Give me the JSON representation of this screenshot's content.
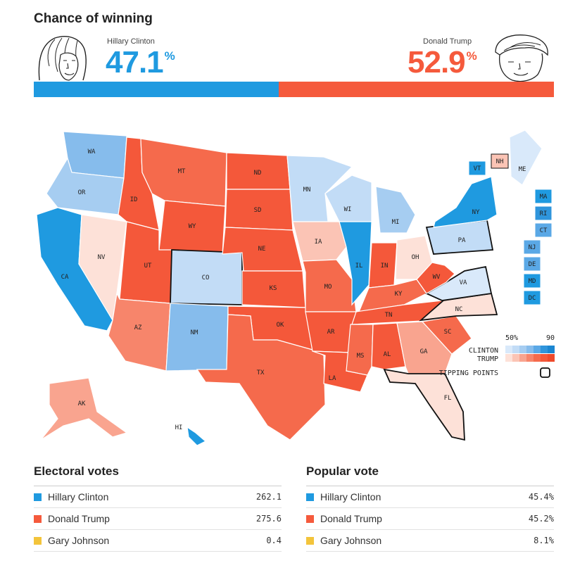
{
  "header": {
    "title": "Chance of winning"
  },
  "candidates": {
    "clinton": {
      "name": "Hillary Clinton",
      "pct": "47.1",
      "pct_value": 47.1,
      "color": "#1f9ae0"
    },
    "trump": {
      "name": "Donald Trump",
      "pct": "52.9",
      "pct_value": 52.9,
      "color": "#f55a3c"
    },
    "pct_sign": "%"
  },
  "legend": {
    "scale_low": "50%",
    "scale_high": "90",
    "clinton_label": "CLINTON",
    "trump_label": "TRUMP",
    "tipping_label": "TIPPING POINTS",
    "blue_scale": [
      "#d9e9fa",
      "#c2dcf6",
      "#a6cdf1",
      "#86bcec",
      "#5aa8e6",
      "#2f95dc",
      "#1b86d1"
    ],
    "red_scale": [
      "#fde1d8",
      "#fbc4b5",
      "#f9a48f",
      "#f7856b",
      "#f56a4c",
      "#f4583a",
      "#ee4a2c"
    ]
  },
  "map": {
    "states": [
      {
        "code": "WA",
        "color": "#86bcec"
      },
      {
        "code": "OR",
        "color": "#a6cdf1"
      },
      {
        "code": "CA",
        "color": "#1f9ae0"
      },
      {
        "code": "NV",
        "color": "#fde1d8"
      },
      {
        "code": "ID",
        "color": "#f4583a"
      },
      {
        "code": "MT",
        "color": "#f56a4c"
      },
      {
        "code": "WY",
        "color": "#f4583a"
      },
      {
        "code": "UT",
        "color": "#f4583a"
      },
      {
        "code": "AZ",
        "color": "#f7856b"
      },
      {
        "code": "CO",
        "color": "#c2dcf6"
      },
      {
        "code": "NM",
        "color": "#86bcec"
      },
      {
        "code": "ND",
        "color": "#f4583a"
      },
      {
        "code": "SD",
        "color": "#f4583a"
      },
      {
        "code": "NE",
        "color": "#f4583a"
      },
      {
        "code": "KS",
        "color": "#f4583a"
      },
      {
        "code": "OK",
        "color": "#f4583a"
      },
      {
        "code": "TX",
        "color": "#f56a4c"
      },
      {
        "code": "MN",
        "color": "#c2dcf6"
      },
      {
        "code": "IA",
        "color": "#fbc4b5"
      },
      {
        "code": "MO",
        "color": "#f56a4c"
      },
      {
        "code": "AR",
        "color": "#f4583a"
      },
      {
        "code": "LA",
        "color": "#f4583a"
      },
      {
        "code": "WI",
        "color": "#c2dcf6"
      },
      {
        "code": "IL",
        "color": "#1f9ae0"
      },
      {
        "code": "MI",
        "color": "#a6cdf1"
      },
      {
        "code": "IN",
        "color": "#f4583a"
      },
      {
        "code": "OH",
        "color": "#fde1d8"
      },
      {
        "code": "KY",
        "color": "#f56a4c"
      },
      {
        "code": "TN",
        "color": "#f4583a"
      },
      {
        "code": "MS",
        "color": "#f56a4c"
      },
      {
        "code": "AL",
        "color": "#f4583a"
      },
      {
        "code": "GA",
        "color": "#f9a48f"
      },
      {
        "code": "FL",
        "color": "#fde1d8"
      },
      {
        "code": "SC",
        "color": "#f56a4c"
      },
      {
        "code": "NC",
        "color": "#fde1d8"
      },
      {
        "code": "VA",
        "color": "#d9e9fa"
      },
      {
        "code": "WV",
        "color": "#f4583a"
      },
      {
        "code": "PA",
        "color": "#c2dcf6"
      },
      {
        "code": "NY",
        "color": "#1f9ae0"
      },
      {
        "code": "ME",
        "color": "#d9e9fa"
      },
      {
        "code": "AK",
        "color": "#f9a48f"
      },
      {
        "code": "HI",
        "color": "#1f9ae0"
      }
    ],
    "boxes": [
      {
        "code": "VT",
        "color": "#1f9ae0"
      },
      {
        "code": "NH",
        "color": "#fbc4b5"
      },
      {
        "code": "MA",
        "color": "#1f9ae0"
      },
      {
        "code": "RI",
        "color": "#2f95dc"
      },
      {
        "code": "CT",
        "color": "#5aa8e6"
      },
      {
        "code": "NJ",
        "color": "#5aa8e6"
      },
      {
        "code": "DE",
        "color": "#5aa8e6"
      },
      {
        "code": "MD",
        "color": "#1f9ae0"
      },
      {
        "code": "DC",
        "color": "#1f9ae0"
      }
    ],
    "tipping_states": [
      "CO",
      "PA",
      "FL",
      "NC",
      "VA",
      "NH"
    ]
  },
  "electoral": {
    "title": "Electoral votes",
    "rows": [
      {
        "name": "Hillary Clinton",
        "value": "262.1",
        "color": "#1f9ae0"
      },
      {
        "name": "Donald Trump",
        "value": "275.6",
        "color": "#f55a3c"
      },
      {
        "name": "Gary Johnson",
        "value": "0.4",
        "color": "#f3c43b"
      }
    ]
  },
  "popular": {
    "title": "Popular vote",
    "rows": [
      {
        "name": "Hillary Clinton",
        "value": "45.4%",
        "color": "#1f9ae0"
      },
      {
        "name": "Donald Trump",
        "value": "45.2%",
        "color": "#f55a3c"
      },
      {
        "name": "Gary Johnson",
        "value": "8.1%",
        "color": "#f3c43b"
      }
    ]
  },
  "chart_data": [
    {
      "type": "bar",
      "title": "Chance of winning",
      "categories": [
        "Hillary Clinton",
        "Donald Trump"
      ],
      "values": [
        47.1,
        52.9
      ],
      "unit": "%"
    },
    {
      "type": "table",
      "title": "Electoral votes",
      "categories": [
        "Hillary Clinton",
        "Donald Trump",
        "Gary Johnson"
      ],
      "values": [
        262.1,
        275.6,
        0.4
      ]
    },
    {
      "type": "table",
      "title": "Popular vote",
      "categories": [
        "Hillary Clinton",
        "Donald Trump",
        "Gary Johnson"
      ],
      "values": [
        45.4,
        45.2,
        8.1
      ],
      "unit": "%"
    }
  ]
}
